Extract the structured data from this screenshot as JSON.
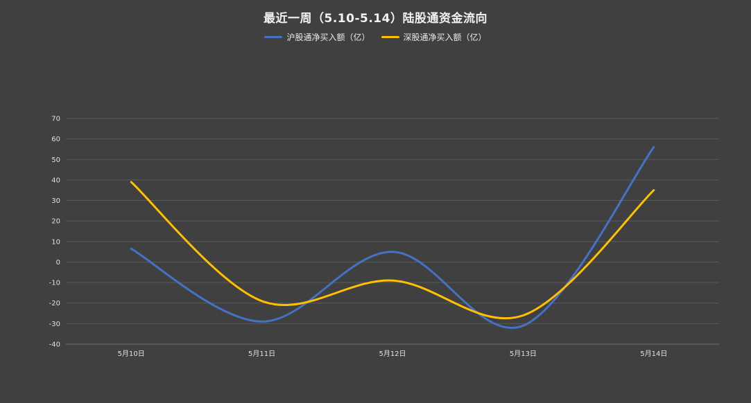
{
  "colors": {
    "background": "#404040",
    "grid": "#5a5a5a",
    "text": "#e0e0e0"
  },
  "chart_data": {
    "type": "line",
    "title": "最近一周（5.10-5.14）陆股通资金流向",
    "xlabel": "",
    "ylabel": "",
    "categories": [
      "5月10日",
      "5月11日",
      "5月12日",
      "5月13日",
      "5月14日"
    ],
    "ylim": [
      -40,
      70
    ],
    "yticks": [
      -40,
      -30,
      -20,
      -10,
      0,
      10,
      20,
      30,
      40,
      50,
      60,
      70
    ],
    "grid": true,
    "legend_position": "top-center",
    "smooth": true,
    "series": [
      {
        "name": "沪股通净买入额（亿）",
        "color": "#4472c4",
        "values": [
          6.5,
          -29,
          5,
          -31,
          56
        ]
      },
      {
        "name": "深股通净买入额（亿）",
        "color": "#ffc000",
        "values": [
          39,
          -19,
          -9,
          -26,
          35
        ]
      }
    ]
  }
}
